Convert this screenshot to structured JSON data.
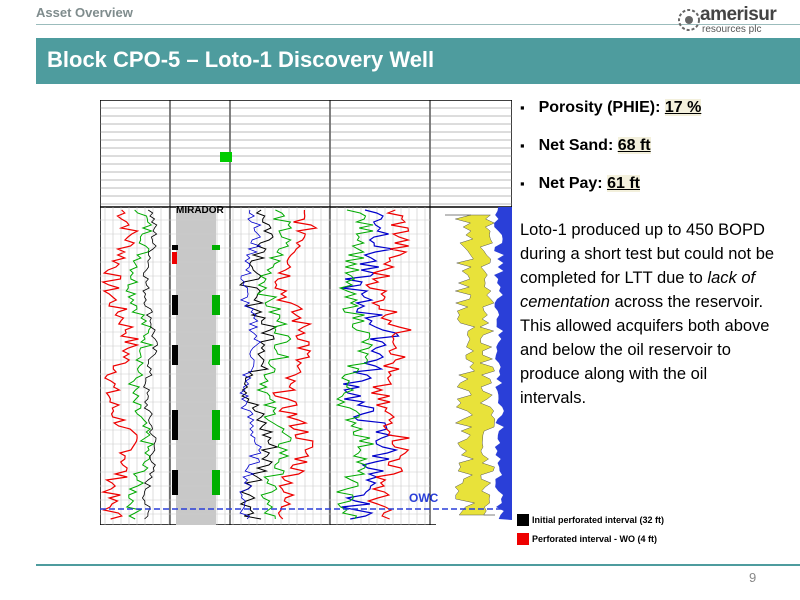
{
  "header": {
    "section": "Asset Overview",
    "logo_name": "amerisur",
    "logo_tagline": "resources plc"
  },
  "title": "Block CPO-5 – Loto-1 Discovery Well",
  "bullets": [
    {
      "label": "Porosity (PHIE):",
      "value": "17 %"
    },
    {
      "label": "Net Sand:",
      "value": "68 ft"
    },
    {
      "label": "Net Pay:",
      "value": "61 ft"
    }
  ],
  "paragraphs": [
    [
      "Loto-1 produced up to 450 BOPD during a short test but could not be completed for LTT due to ",
      "lack of cementation",
      " across the reservoir."
    ],
    [
      "This allowed acquifers both above and below the oil reservoir to produce along with the oil intervals."
    ]
  ],
  "log": {
    "zone": "MIRADOR",
    "contact": "OWC"
  },
  "legend": [
    "Initial perforated interval (32 ft)",
    "Perforated interval -  WO (4 ft)"
  ],
  "page_number": "9"
}
